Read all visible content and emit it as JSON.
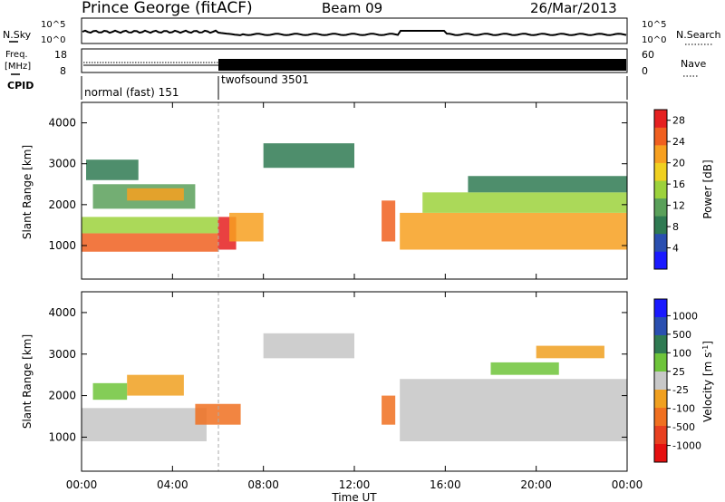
{
  "header": {
    "station": "Prince George (fitACF)",
    "beam": "Beam 09",
    "date": "26/Mar/2013"
  },
  "panels": {
    "noise": {
      "left_label": "N.Sky",
      "right_label": "N.Search",
      "left_ticks": [
        "10^5",
        "10^0"
      ],
      "right_ticks": [
        "10^5",
        "10^0"
      ]
    },
    "freq": {
      "left_label_1": "Freq.",
      "left_label_2": "[MHz]",
      "right_label": "Nave",
      "left_ticks": [
        "18",
        "8"
      ],
      "right_ticks": [
        "60",
        "0"
      ]
    },
    "cpid": {
      "label": "CPID",
      "modes": [
        {
          "name": "normal (fast) 151",
          "start_hour": 0,
          "end_hour": 6
        },
        {
          "name": "twofsound 3501",
          "start_hour": 6,
          "end_hour": 24
        }
      ]
    }
  },
  "x_axis": {
    "label": "Time UT",
    "ticks": [
      "00:00",
      "04:00",
      "08:00",
      "12:00",
      "16:00",
      "20:00",
      "00:00"
    ]
  },
  "colors": {
    "power": [
      "#1a1aff",
      "#2a4fb0",
      "#2f7a52",
      "#5aa05a",
      "#9cd23c",
      "#f0d020",
      "#f7a020",
      "#f06020",
      "#e52020"
    ],
    "velocity": [
      "#1a1aff",
      "#2a4fb0",
      "#2f7a52",
      "#6ec43a",
      "#c8c8c8",
      "#f0a020",
      "#f07020",
      "#e84020",
      "#e51010"
    ],
    "gray": "#c6c6c6"
  },
  "chart_data": [
    {
      "type": "heatmap",
      "title": "Power",
      "xlabel": "Time UT",
      "ylabel": "Slant Range [km]",
      "xlim": [
        0,
        24
      ],
      "ylim": [
        180,
        4500
      ],
      "y_ticks": [
        "1000",
        "2000",
        "3000",
        "4000"
      ],
      "colorbar": {
        "label": "Power [dB]",
        "ticks": [
          "4",
          "8",
          "12",
          "16",
          "20",
          "24",
          "28"
        ],
        "range": [
          0,
          30
        ]
      },
      "regions": [
        {
          "t0": 0.0,
          "t1": 6.0,
          "r_low": 850,
          "r_high": 1300,
          "value": 26
        },
        {
          "t0": 0.0,
          "t1": 6.0,
          "r_low": 1300,
          "r_high": 1700,
          "value": 15
        },
        {
          "t0": 0.5,
          "t1": 5.0,
          "r_low": 1900,
          "r_high": 2500,
          "value": 12
        },
        {
          "t0": 2.0,
          "t1": 4.5,
          "r_low": 2100,
          "r_high": 2400,
          "value": 20
        },
        {
          "t0": 0.2,
          "t1": 2.5,
          "r_low": 2600,
          "r_high": 3100,
          "value": 8
        },
        {
          "t0": 6.0,
          "t1": 6.8,
          "r_low": 900,
          "r_high": 1700,
          "value": 28
        },
        {
          "t0": 6.5,
          "t1": 8.0,
          "r_low": 1100,
          "r_high": 1800,
          "value": 22
        },
        {
          "t0": 8.0,
          "t1": 12.0,
          "r_low": 2900,
          "r_high": 3500,
          "value": 8
        },
        {
          "t0": 13.2,
          "t1": 13.8,
          "r_low": 1100,
          "r_high": 2100,
          "value": 24
        },
        {
          "t0": 14.0,
          "t1": 24.0,
          "r_low": 900,
          "r_high": 1800,
          "value": 22
        },
        {
          "t0": 15.0,
          "t1": 24.0,
          "r_low": 1800,
          "r_high": 2300,
          "value": 15
        },
        {
          "t0": 17.0,
          "t1": 24.0,
          "r_low": 2300,
          "r_high": 2700,
          "value": 8
        }
      ]
    },
    {
      "type": "heatmap",
      "title": "Velocity",
      "xlabel": "Time UT",
      "ylabel": "Slant Range [km]",
      "xlim": [
        0,
        24
      ],
      "ylim": [
        180,
        4500
      ],
      "y_ticks": [
        "1000",
        "2000",
        "3000",
        "4000"
      ],
      "colorbar": {
        "label": "Velocity [m s^-1]",
        "ticks": [
          "1000",
          "500",
          "100",
          "25",
          "-25",
          "-100",
          "-500",
          "-1000"
        ]
      },
      "regions": [
        {
          "t0": 0.0,
          "t1": 5.5,
          "r_low": 900,
          "r_high": 1700,
          "value": "ground"
        },
        {
          "t0": 2.0,
          "t1": 4.5,
          "r_low": 2000,
          "r_high": 2500,
          "value": "-100"
        },
        {
          "t0": 0.5,
          "t1": 2.0,
          "r_low": 1900,
          "r_high": 2300,
          "value": "100"
        },
        {
          "t0": 5.0,
          "t1": 7.0,
          "r_low": 1300,
          "r_high": 1800,
          "value": "-500"
        },
        {
          "t0": 8.0,
          "t1": 12.0,
          "r_low": 2900,
          "r_high": 3500,
          "value": "ground"
        },
        {
          "t0": 13.2,
          "t1": 13.8,
          "r_low": 1300,
          "r_high": 2000,
          "value": "-500"
        },
        {
          "t0": 14.0,
          "t1": 24.0,
          "r_low": 900,
          "r_high": 2400,
          "value": "ground"
        },
        {
          "t0": 18.0,
          "t1": 21.0,
          "r_low": 2500,
          "r_high": 2800,
          "value": "100"
        },
        {
          "t0": 20.0,
          "t1": 23.0,
          "r_low": 2900,
          "r_high": 3200,
          "value": "-100"
        }
      ]
    }
  ]
}
